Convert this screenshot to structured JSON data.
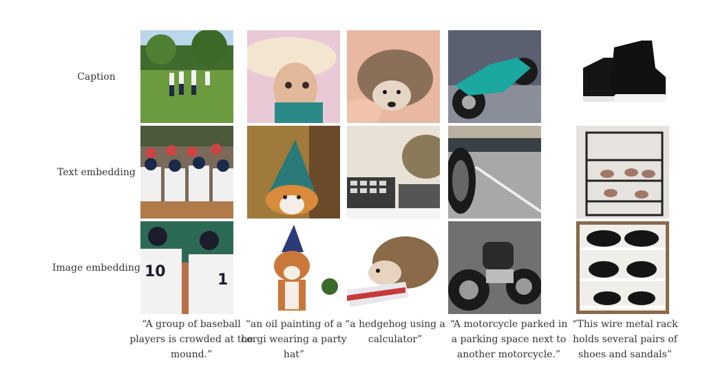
{
  "rows": [
    {
      "label": "Caption"
    },
    {
      "label": "Text embedding"
    },
    {
      "label": "Image embedding"
    }
  ],
  "columns": [
    {
      "caption": "“A group of baseball players is crowded at the mound.”"
    },
    {
      "caption": "“an oil painting of a corgi wearing a party hat”"
    },
    {
      "caption": "“a hedgehog using a calculator”"
    },
    {
      "caption": "“A motorcycle parked in a parking space next to another motorcycle.”"
    },
    {
      "caption": "“This wire metal rack holds several pairs of shoes and sandals”"
    }
  ]
}
